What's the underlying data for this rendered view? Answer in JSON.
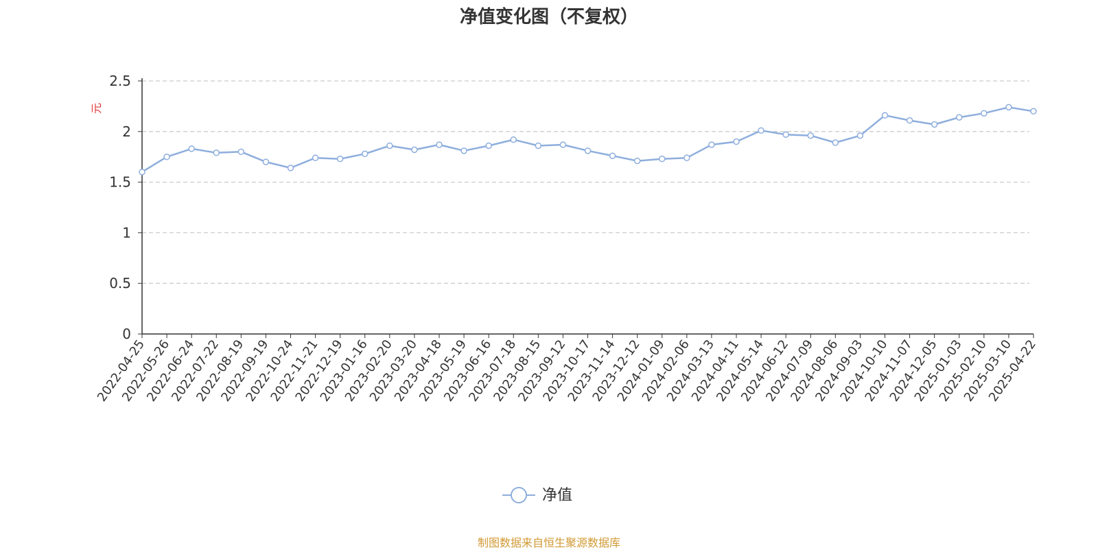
{
  "page": {
    "title": "净值变化图（不复权）",
    "source_text": "制图数据来自恒生聚源数据库"
  },
  "colors": {
    "line": "#8eaedd",
    "unit": "#e03a3a",
    "grid": "#cccccc",
    "axis": "#333333",
    "source": "#d19a35"
  },
  "chart_data": {
    "type": "line",
    "title": "净值变化图（不复权）",
    "ylabel": "元",
    "ylim": [
      0,
      2.5
    ],
    "y_ticks": [
      "0",
      "0.5",
      "1",
      "1.5",
      "2",
      "2.5"
    ],
    "grid": true,
    "legend_position": "bottom-center",
    "x_tick_labels": [
      "2022-04-25",
      "2022-05-26",
      "2022-06-24",
      "2022-07-22",
      "2022-08-19",
      "2022-09-19",
      "2022-10-24",
      "2022-11-21",
      "2022-12-19",
      "2023-01-16",
      "2023-02-20",
      "2023-03-20",
      "2023-04-18",
      "2023-05-19",
      "2023-06-16",
      "2023-07-18",
      "2023-08-15",
      "2023-09-12",
      "2023-10-17",
      "2023-11-14",
      "2023-12-12",
      "2024-01-09",
      "2024-02-06",
      "2024-03-13",
      "2024-04-11",
      "2024-05-14",
      "2024-06-12",
      "2024-07-09",
      "2024-08-06",
      "2024-09-03",
      "2024-10-10",
      "2024-11-07",
      "2024-12-05",
      "2025-01-03",
      "2025-02-10",
      "2025-03-10",
      "2025-04-22"
    ],
    "series": [
      {
        "name": "净值",
        "color": "#8eaedd",
        "values": [
          1.6,
          1.75,
          1.83,
          1.79,
          1.8,
          1.7,
          1.64,
          1.74,
          1.73,
          1.78,
          1.86,
          1.82,
          1.87,
          1.81,
          1.86,
          1.92,
          1.86,
          1.87,
          1.81,
          1.76,
          1.71,
          1.73,
          1.74,
          1.87,
          1.9,
          2.01,
          1.97,
          1.96,
          1.89,
          1.96,
          2.16,
          2.11,
          2.07,
          2.14,
          2.18,
          2.24,
          2.2
        ]
      }
    ]
  }
}
